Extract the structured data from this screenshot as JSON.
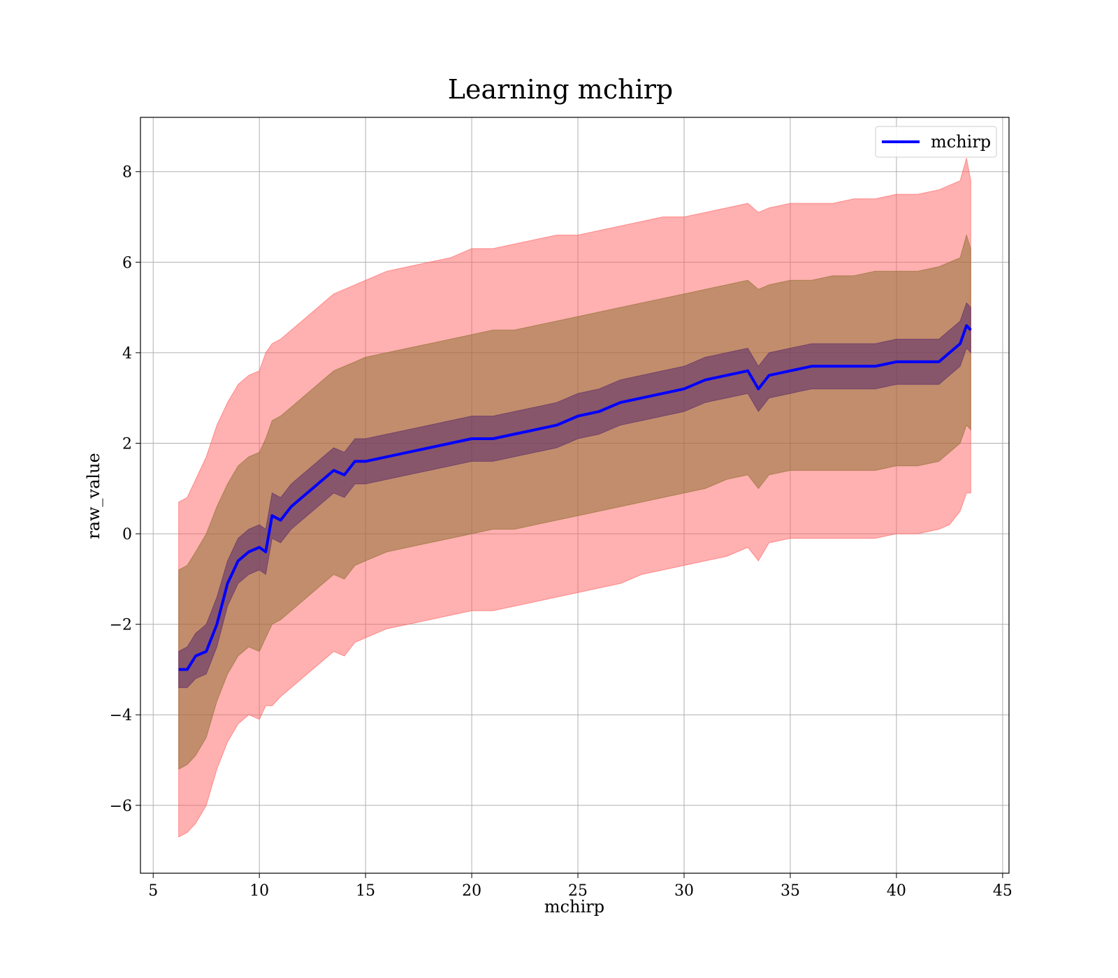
{
  "chart_data": {
    "type": "line",
    "title": "Learning mchirp",
    "xlabel": "mchirp",
    "ylabel": "raw_value",
    "xlim": [
      4.4,
      45.3
    ],
    "ylim": [
      -7.5,
      9.2
    ],
    "xticks": [
      5,
      10,
      15,
      20,
      25,
      30,
      35,
      40,
      45
    ],
    "xtick_labels": [
      "5",
      "10",
      "15",
      "20",
      "25",
      "30",
      "35",
      "40",
      "45"
    ],
    "yticks": [
      -6,
      -4,
      -2,
      0,
      2,
      4,
      6,
      8
    ],
    "ytick_labels": [
      "−6",
      "−4",
      "−2",
      "0",
      "2",
      "4",
      "6",
      "8"
    ],
    "grid": true,
    "legend_position": "top-right",
    "legend": [
      "mchirp"
    ],
    "colors": {
      "line": "#0000ff",
      "band_outer": "#ff5a5a",
      "band_middle": "#8a6e2e",
      "band_inner": "#5a2a6a"
    },
    "x": [
      6.2,
      6.6,
      7.0,
      7.5,
      8.0,
      8.5,
      9.0,
      9.5,
      10.0,
      10.3,
      10.6,
      11.0,
      11.5,
      12.0,
      12.5,
      13.0,
      13.5,
      14.0,
      14.5,
      15.0,
      16.0,
      17.0,
      18.0,
      19.0,
      20.0,
      21.0,
      22.0,
      23.0,
      24.0,
      25.0,
      26.0,
      27.0,
      28.0,
      29.0,
      30.0,
      31.0,
      32.0,
      33.0,
      33.5,
      34.0,
      35.0,
      36.0,
      37.0,
      38.0,
      39.0,
      40.0,
      41.0,
      42.0,
      42.5,
      43.0,
      43.3,
      43.5
    ],
    "series": [
      {
        "name": "mchirp",
        "values": [
          -3.0,
          -3.0,
          -2.7,
          -2.6,
          -2.0,
          -1.1,
          -0.6,
          -0.4,
          -0.3,
          -0.4,
          0.4,
          0.3,
          0.6,
          0.8,
          1.0,
          1.2,
          1.4,
          1.3,
          1.6,
          1.6,
          1.7,
          1.8,
          1.9,
          2.0,
          2.1,
          2.1,
          2.2,
          2.3,
          2.4,
          2.6,
          2.7,
          2.9,
          3.0,
          3.1,
          3.2,
          3.4,
          3.5,
          3.6,
          3.2,
          3.5,
          3.6,
          3.7,
          3.7,
          3.7,
          3.7,
          3.8,
          3.8,
          3.8,
          4.0,
          4.2,
          4.6,
          4.5
        ]
      }
    ],
    "bands": [
      {
        "level": "outer",
        "upper": [
          0.7,
          0.8,
          1.2,
          1.7,
          2.4,
          2.9,
          3.3,
          3.5,
          3.6,
          4.0,
          4.2,
          4.3,
          4.5,
          4.7,
          4.9,
          5.1,
          5.3,
          5.4,
          5.5,
          5.6,
          5.8,
          5.9,
          6.0,
          6.1,
          6.3,
          6.3,
          6.4,
          6.5,
          6.6,
          6.6,
          6.7,
          6.8,
          6.9,
          7.0,
          7.0,
          7.1,
          7.2,
          7.3,
          7.1,
          7.2,
          7.3,
          7.3,
          7.3,
          7.4,
          7.4,
          7.5,
          7.5,
          7.6,
          7.7,
          7.8,
          8.3,
          7.8
        ],
        "lower": [
          -6.7,
          -6.6,
          -6.4,
          -6.0,
          -5.2,
          -4.6,
          -4.2,
          -4.0,
          -4.1,
          -3.8,
          -3.8,
          -3.6,
          -3.4,
          -3.2,
          -3.0,
          -2.8,
          -2.6,
          -2.7,
          -2.4,
          -2.3,
          -2.1,
          -2.0,
          -1.9,
          -1.8,
          -1.7,
          -1.7,
          -1.6,
          -1.5,
          -1.4,
          -1.3,
          -1.2,
          -1.1,
          -0.9,
          -0.8,
          -0.7,
          -0.6,
          -0.5,
          -0.3,
          -0.6,
          -0.2,
          -0.1,
          -0.1,
          -0.1,
          -0.1,
          -0.1,
          0.0,
          0.0,
          0.1,
          0.2,
          0.5,
          0.9,
          0.9
        ]
      },
      {
        "level": "middle",
        "upper": [
          -0.8,
          -0.7,
          -0.4,
          0.0,
          0.6,
          1.1,
          1.5,
          1.7,
          1.8,
          2.1,
          2.5,
          2.6,
          2.8,
          3.0,
          3.2,
          3.4,
          3.6,
          3.7,
          3.8,
          3.9,
          4.0,
          4.1,
          4.2,
          4.3,
          4.4,
          4.5,
          4.5,
          4.6,
          4.7,
          4.8,
          4.9,
          5.0,
          5.1,
          5.2,
          5.3,
          5.4,
          5.5,
          5.6,
          5.4,
          5.5,
          5.6,
          5.6,
          5.7,
          5.7,
          5.8,
          5.8,
          5.8,
          5.9,
          6.0,
          6.1,
          6.6,
          6.3
        ],
        "lower": [
          -5.2,
          -5.1,
          -4.9,
          -4.5,
          -3.7,
          -3.1,
          -2.7,
          -2.5,
          -2.6,
          -2.3,
          -2.0,
          -1.9,
          -1.7,
          -1.5,
          -1.3,
          -1.1,
          -0.9,
          -1.0,
          -0.7,
          -0.6,
          -0.4,
          -0.3,
          -0.2,
          -0.1,
          0.0,
          0.1,
          0.1,
          0.2,
          0.3,
          0.4,
          0.5,
          0.6,
          0.7,
          0.8,
          0.9,
          1.0,
          1.2,
          1.3,
          1.0,
          1.3,
          1.4,
          1.4,
          1.4,
          1.4,
          1.4,
          1.5,
          1.5,
          1.6,
          1.8,
          2.0,
          2.4,
          2.3
        ]
      },
      {
        "level": "inner",
        "upper": [
          -2.6,
          -2.5,
          -2.2,
          -2.0,
          -1.4,
          -0.6,
          -0.1,
          0.1,
          0.2,
          0.1,
          0.9,
          0.8,
          1.1,
          1.3,
          1.5,
          1.7,
          1.9,
          1.8,
          2.1,
          2.1,
          2.2,
          2.3,
          2.4,
          2.5,
          2.6,
          2.6,
          2.7,
          2.8,
          2.9,
          3.1,
          3.2,
          3.4,
          3.5,
          3.6,
          3.7,
          3.9,
          4.0,
          4.1,
          3.7,
          4.0,
          4.1,
          4.2,
          4.2,
          4.2,
          4.2,
          4.3,
          4.3,
          4.3,
          4.5,
          4.7,
          5.1,
          5.0
        ],
        "lower": [
          -3.4,
          -3.4,
          -3.2,
          -3.1,
          -2.5,
          -1.6,
          -1.1,
          -0.9,
          -0.8,
          -0.9,
          -0.1,
          -0.2,
          0.1,
          0.3,
          0.5,
          0.7,
          0.9,
          0.8,
          1.1,
          1.1,
          1.2,
          1.3,
          1.4,
          1.5,
          1.6,
          1.6,
          1.7,
          1.8,
          1.9,
          2.1,
          2.2,
          2.4,
          2.5,
          2.6,
          2.7,
          2.9,
          3.0,
          3.1,
          2.7,
          3.0,
          3.1,
          3.2,
          3.2,
          3.2,
          3.2,
          3.3,
          3.3,
          3.3,
          3.5,
          3.7,
          4.1,
          4.0
        ]
      }
    ]
  }
}
